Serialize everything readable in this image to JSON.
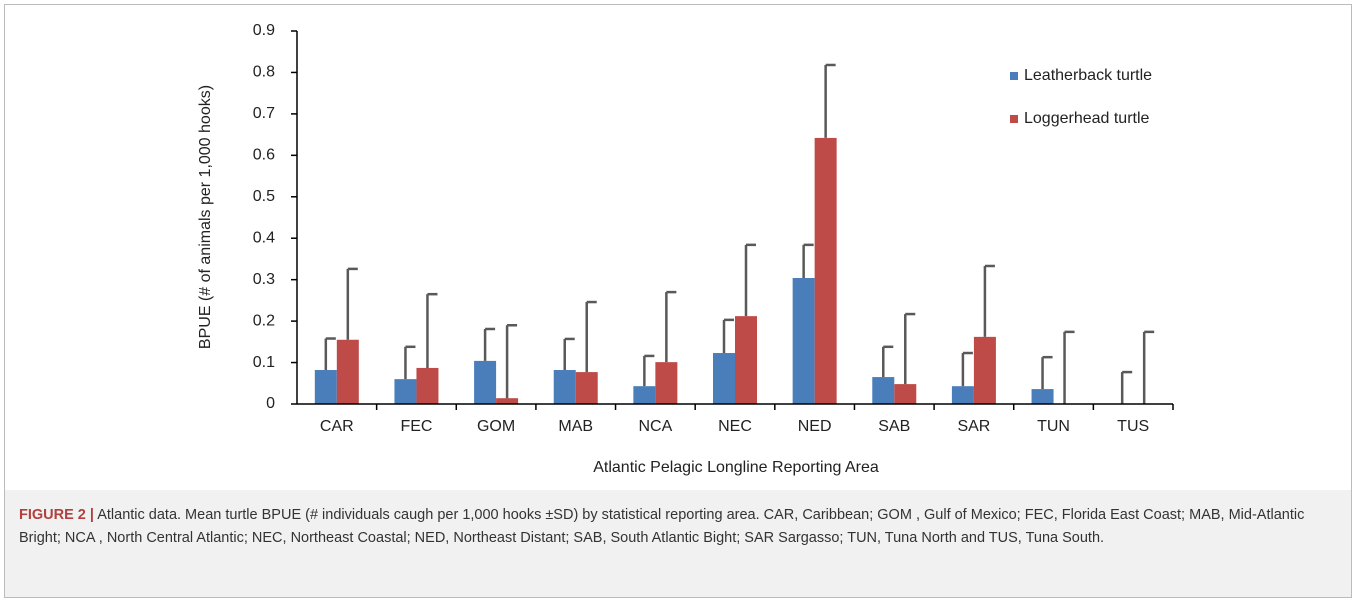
{
  "chart_data": {
    "type": "bar",
    "y_label": "BPUE (# of animals per 1,000 hooks)",
    "x_label": "Atlantic Pelagic Longline Reporting Area",
    "categories": [
      "CAR",
      "FEC",
      "GOM",
      "MAB",
      "NCA",
      "NEC",
      "NED",
      "SAB",
      "SAR",
      "TUN",
      "TUS"
    ],
    "series": [
      {
        "name": "Leatherback turtle",
        "color": "#4a7ebb",
        "values": [
          0.082,
          0.06,
          0.104,
          0.082,
          0.043,
          0.123,
          0.304,
          0.065,
          0.043,
          0.036,
          0
        ],
        "errors": [
          0.076,
          0.078,
          0.077,
          0.075,
          0.073,
          0.08,
          0.08,
          0.073,
          0.08,
          0.077,
          0.077
        ]
      },
      {
        "name": "Loggerhead turtle",
        "color": "#be4b48",
        "values": [
          0.155,
          0.087,
          0.014,
          0.077,
          0.101,
          0.212,
          0.642,
          0.048,
          0.162,
          0,
          0
        ],
        "errors": [
          0.171,
          0.178,
          0.176,
          0.169,
          0.169,
          0.172,
          0.176,
          0.169,
          0.171,
          0.174,
          0.174
        ]
      }
    ],
    "ylim": [
      0,
      0.9
    ],
    "yticks": [
      0,
      0.1,
      0.2,
      0.3,
      0.4,
      0.5,
      0.6,
      0.7,
      0.8,
      0.9
    ],
    "legend": "upper right",
    "error_color": "#595959"
  },
  "caption": {
    "label": "FIGURE 2 |",
    "text": "Atlantic data. Mean turtle BPUE (# individuals caugh per 1,000 hooks ±SD) by statistical reporting area. CAR, Caribbean; GOM , Gulf of Mexico; FEC, Florida East Coast; MAB, Mid-Atlantic Bright; NCA , North Central Atlantic; NEC, Northeast Coastal; NED, Northeast Distant; SAB, South Atlantic Bight; SAR Sargasso; TUN, Tuna North and TUS, Tuna South."
  }
}
